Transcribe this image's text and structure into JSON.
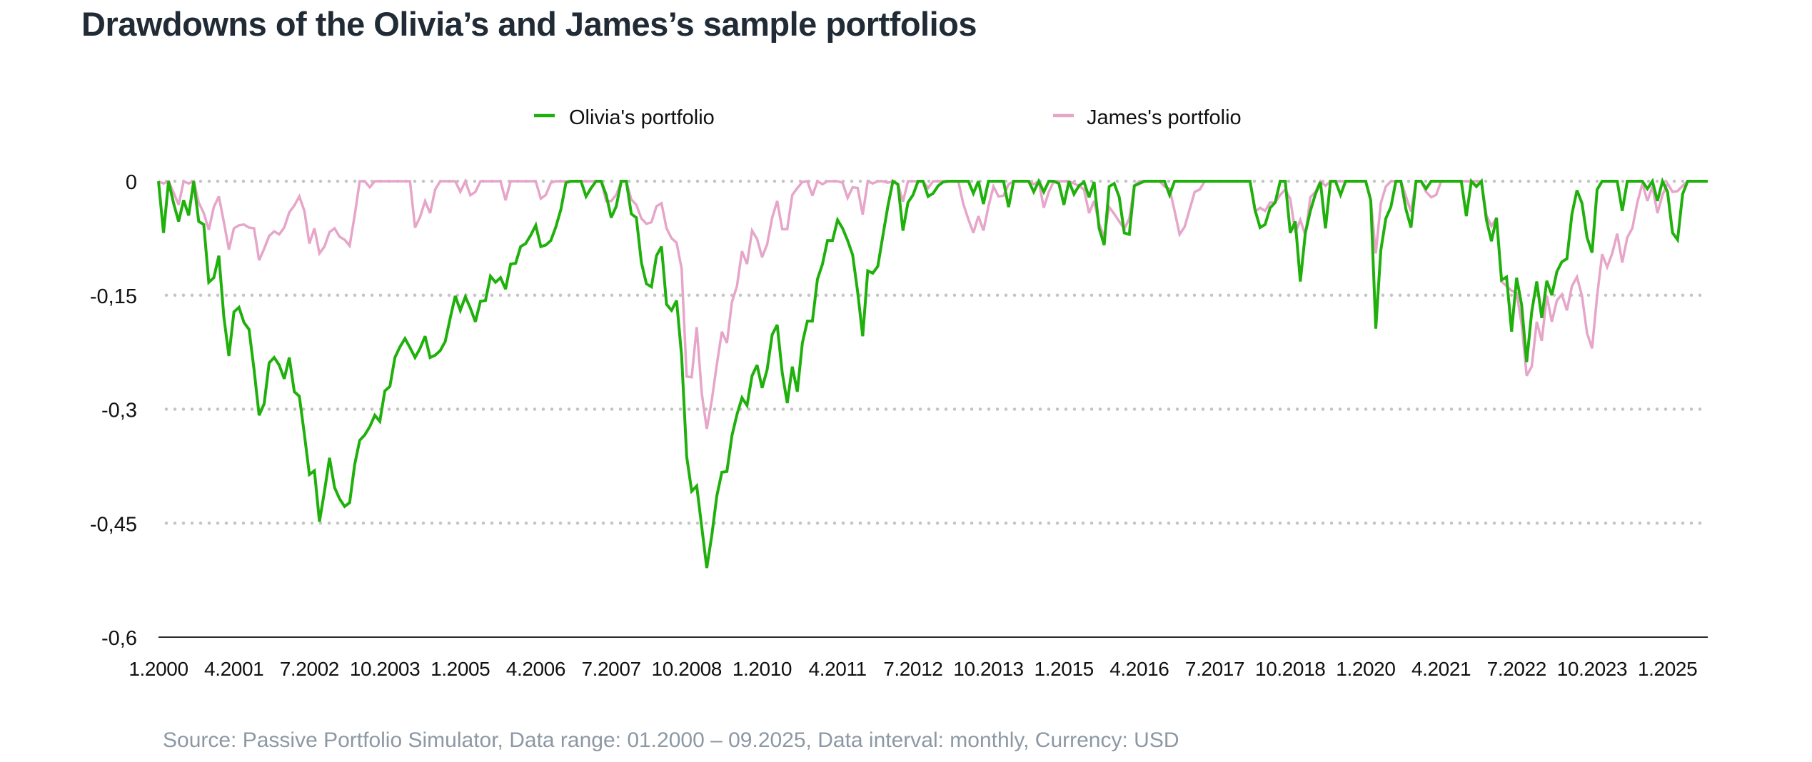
{
  "chart_data": {
    "type": "line",
    "title": "Drawdowns of the Olivia’s and James’s sample portfolios",
    "source_note": "Source: Passive Portfolio Simulator, Data range: 01.2000 – 09.2025, Data interval: monthly, Currency: USD",
    "x_start": "1.2000",
    "x_end": "9.2025",
    "x_interval": "monthly",
    "x_tick_every_months": 15,
    "x_tick_labels": [
      "1.2000",
      "4.2001",
      "7.2002",
      "10.2003",
      "1.2005",
      "4.2006",
      "7.2007",
      "10.2008",
      "1.2010",
      "4.2011",
      "7.2012",
      "10.2013",
      "1.2015",
      "4.2016",
      "7.2017",
      "10.2018",
      "1.2020",
      "4.2021",
      "7.2022",
      "10.2023",
      "1.2025"
    ],
    "xlabel": "",
    "ylabel": "",
    "ylim": [
      -0.6,
      0
    ],
    "y_ticks": [
      {
        "value": 0,
        "label": "0"
      },
      {
        "value": -0.15,
        "label": "-0,15"
      },
      {
        "value": -0.3,
        "label": "-0,3"
      },
      {
        "value": -0.45,
        "label": "-0,45"
      },
      {
        "value": -0.6,
        "label": "-0,6"
      }
    ],
    "grid": "horizontal dotted",
    "legend_position": "top",
    "series": [
      {
        "name": "Olivia's portfolio",
        "color": "#1fb00c",
        "values": [
          0,
          -0.068,
          0,
          -0.029,
          -0.053,
          -0.025,
          -0.045,
          0,
          -0.053,
          -0.057,
          -0.133,
          -0.127,
          -0.098,
          -0.179,
          -0.23,
          -0.172,
          -0.166,
          -0.186,
          -0.195,
          -0.248,
          -0.308,
          -0.293,
          -0.239,
          -0.232,
          -0.242,
          -0.26,
          -0.232,
          -0.277,
          -0.283,
          -0.333,
          -0.386,
          -0.381,
          -0.448,
          -0.408,
          -0.364,
          -0.403,
          -0.418,
          -0.428,
          -0.423,
          -0.373,
          -0.341,
          -0.334,
          -0.323,
          -0.308,
          -0.316,
          -0.276,
          -0.27,
          -0.232,
          -0.218,
          -0.207,
          -0.219,
          -0.232,
          -0.22,
          -0.204,
          -0.232,
          -0.229,
          -0.223,
          -0.211,
          -0.18,
          -0.151,
          -0.17,
          -0.152,
          -0.167,
          -0.185,
          -0.158,
          -0.157,
          -0.125,
          -0.133,
          -0.127,
          -0.142,
          -0.109,
          -0.108,
          -0.086,
          -0.082,
          -0.071,
          -0.058,
          -0.086,
          -0.084,
          -0.078,
          -0.06,
          -0.037,
          -0.002,
          0,
          0,
          0,
          -0.02,
          -0.009,
          0,
          0,
          -0.018,
          -0.048,
          -0.033,
          0,
          0,
          -0.043,
          -0.048,
          -0.107,
          -0.135,
          -0.139,
          -0.098,
          -0.086,
          -0.162,
          -0.17,
          -0.157,
          -0.23,
          -0.362,
          -0.408,
          -0.401,
          -0.455,
          -0.509,
          -0.466,
          -0.414,
          -0.383,
          -0.382,
          -0.335,
          -0.307,
          -0.285,
          -0.295,
          -0.256,
          -0.242,
          -0.272,
          -0.248,
          -0.202,
          -0.189,
          -0.252,
          -0.292,
          -0.244,
          -0.277,
          -0.213,
          -0.184,
          -0.184,
          -0.129,
          -0.109,
          -0.078,
          -0.078,
          -0.051,
          -0.062,
          -0.078,
          -0.097,
          -0.146,
          -0.204,
          -0.118,
          -0.121,
          -0.112,
          -0.072,
          -0.033,
          0,
          -0.004,
          -0.065,
          -0.028,
          -0.018,
          0,
          0,
          -0.02,
          -0.016,
          -0.006,
          -0.001,
          0,
          0,
          0,
          0,
          0,
          -0.016,
          0,
          -0.03,
          0,
          0,
          0,
          0,
          -0.034,
          0,
          0,
          0,
          0,
          -0.014,
          0,
          -0.014,
          0,
          0,
          -0.003,
          -0.031,
          0,
          -0.017,
          -0.006,
          -0.001,
          -0.021,
          -0.001,
          -0.062,
          -0.084,
          -0.007,
          -0.003,
          -0.021,
          -0.068,
          -0.07,
          -0.006,
          -0.003,
          0,
          0,
          0,
          0,
          0,
          -0.018,
          0,
          0,
          0,
          0,
          0,
          0,
          0,
          0,
          0,
          0,
          0,
          0,
          0,
          0,
          0,
          0,
          -0.038,
          -0.061,
          -0.057,
          -0.035,
          -0.028,
          0,
          0,
          -0.068,
          -0.053,
          -0.132,
          -0.068,
          -0.039,
          -0.017,
          -0.001,
          -0.062,
          0,
          0,
          -0.018,
          0,
          0,
          0,
          0,
          0,
          -0.025,
          -0.194,
          -0.091,
          -0.049,
          -0.034,
          0,
          0,
          -0.037,
          -0.061,
          0,
          0,
          -0.01,
          0,
          0,
          0,
          0,
          0,
          0,
          0,
          -0.046,
          0,
          -0.007,
          0,
          -0.051,
          -0.079,
          -0.048,
          -0.13,
          -0.126,
          -0.198,
          -0.127,
          -0.163,
          -0.238,
          -0.172,
          -0.132,
          -0.18,
          -0.131,
          -0.15,
          -0.119,
          -0.106,
          -0.102,
          -0.043,
          -0.012,
          -0.029,
          -0.074,
          -0.094,
          -0.011,
          0,
          0,
          0,
          0,
          -0.039,
          0,
          0,
          0,
          0,
          -0.01,
          0,
          -0.026,
          0,
          -0.014,
          -0.068,
          -0.077,
          -0.017,
          0,
          0,
          0,
          0,
          0
        ]
      },
      {
        "name": "James's portfolio",
        "color": "#e6a5c9",
        "values": [
          0,
          -0.003,
          0,
          -0.015,
          -0.031,
          0,
          -0.003,
          0,
          -0.028,
          -0.042,
          -0.064,
          -0.034,
          -0.02,
          -0.054,
          -0.09,
          -0.062,
          -0.058,
          -0.057,
          -0.061,
          -0.062,
          -0.104,
          -0.089,
          -0.072,
          -0.066,
          -0.07,
          -0.061,
          -0.041,
          -0.032,
          -0.02,
          -0.039,
          -0.082,
          -0.062,
          -0.095,
          -0.086,
          -0.067,
          -0.062,
          -0.073,
          -0.077,
          -0.085,
          -0.045,
          0,
          0,
          -0.008,
          0,
          0,
          0,
          0,
          0,
          0,
          0,
          0,
          -0.061,
          -0.047,
          -0.026,
          -0.042,
          -0.011,
          0,
          0,
          0,
          0,
          -0.014,
          0,
          -0.0185,
          -0.014,
          0,
          0,
          0,
          0,
          0,
          -0.025,
          0,
          0,
          0,
          0,
          0,
          0,
          -0.023,
          -0.018,
          -0.002,
          0,
          0,
          0,
          0,
          0,
          0,
          0,
          0,
          0,
          0,
          -0.026,
          -0.026,
          -0.018,
          0,
          0,
          -0.024,
          -0.031,
          -0.049,
          -0.056,
          -0.054,
          -0.033,
          -0.029,
          -0.062,
          -0.075,
          -0.081,
          -0.115,
          -0.257,
          -0.258,
          -0.192,
          -0.279,
          -0.326,
          -0.288,
          -0.241,
          -0.198,
          -0.213,
          -0.159,
          -0.138,
          -0.092,
          -0.109,
          -0.065,
          -0.076,
          -0.1,
          -0.083,
          -0.048,
          -0.026,
          -0.063,
          -0.063,
          -0.018,
          -0.009,
          -0.001,
          0,
          -0.019,
          0,
          -0.004,
          0,
          0,
          0,
          -0.002,
          -0.022,
          -0.008,
          -0.009,
          -0.044,
          0,
          -0.003,
          0,
          0,
          -0.002,
          0,
          -0.004,
          -0.027,
          0,
          0,
          0,
          0,
          -0.009,
          0,
          0,
          0,
          0,
          0,
          0,
          -0.03,
          -0.05,
          -0.068,
          -0.046,
          -0.065,
          -0.033,
          -0.007,
          -0.02,
          -0.019,
          -0.004,
          0,
          0,
          0,
          0,
          -0.004,
          0,
          -0.035,
          -0.014,
          0,
          0,
          0,
          0,
          -0.003,
          -0.006,
          -0.011,
          -0.042,
          -0.026,
          -0.056,
          -0.073,
          -0.034,
          -0.043,
          -0.053,
          -0.063,
          -0.049,
          -0.006,
          0,
          0,
          0,
          0,
          0,
          -0.007,
          -0.01,
          -0.039,
          -0.07,
          -0.06,
          -0.037,
          -0.014,
          -0.011,
          0,
          0,
          0,
          0,
          0,
          0,
          0,
          0,
          0,
          0,
          -0.04,
          -0.035,
          -0.039,
          -0.028,
          -0.028,
          -0.018,
          -0.011,
          -0.023,
          -0.068,
          -0.051,
          -0.071,
          -0.021,
          -0.014,
          0,
          -0.006,
          0,
          0,
          0,
          0,
          0,
          0,
          0,
          0,
          -0.025,
          -0.095,
          -0.029,
          -0.007,
          0,
          0,
          0,
          -0.02,
          -0.04,
          0,
          0,
          -0.014,
          -0.021,
          -0.018,
          0,
          0,
          0,
          0,
          0,
          0,
          0,
          0,
          0,
          -0.045,
          -0.059,
          -0.048,
          -0.132,
          -0.138,
          -0.144,
          -0.147,
          -0.188,
          -0.256,
          -0.244,
          -0.185,
          -0.21,
          -0.151,
          -0.185,
          -0.157,
          -0.149,
          -0.17,
          -0.138,
          -0.126,
          -0.151,
          -0.2,
          -0.22,
          -0.151,
          -0.096,
          -0.113,
          -0.095,
          -0.069,
          -0.107,
          -0.074,
          -0.062,
          -0.028,
          -0.003,
          -0.026,
          -0.007,
          -0.042,
          -0.018,
          -0.003,
          -0.014,
          -0.013,
          -0.006,
          0,
          0,
          0,
          0,
          0
        ]
      }
    ]
  }
}
